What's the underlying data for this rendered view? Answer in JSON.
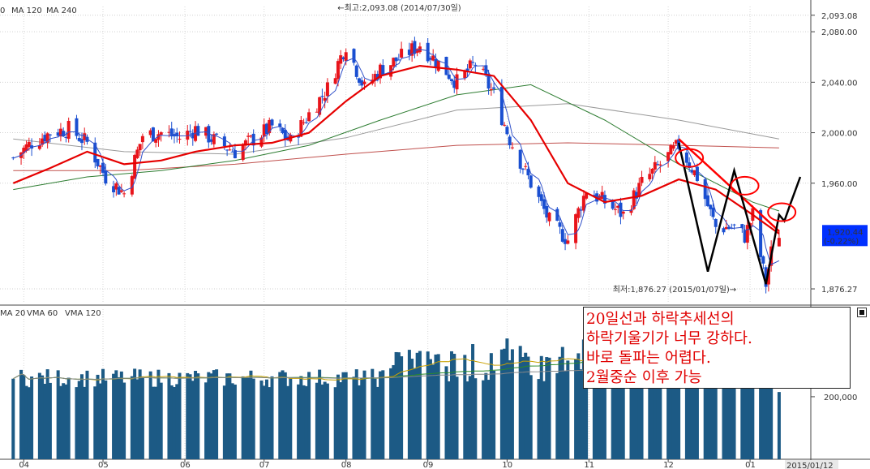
{
  "chart_data": [
    {
      "type": "candlestick",
      "title": "",
      "legend": [
        "MA 120",
        "MA 240"
      ],
      "legend_prefix": "0",
      "y_ticks": [
        "2,093.08",
        "2,080.00",
        "2,040.00",
        "2,000.00",
        "1,960.00",
        "1,876.27"
      ],
      "ylim": [
        1866,
        2100
      ],
      "grid": true,
      "high_annotation": "←최고:2,093.08 (2014/07/30일)",
      "low_annotation": "최저:1,876.27 (2015/01/07일)→",
      "last_value": "1,920.44",
      "last_change": "(-0.22%)",
      "x_months": [
        "04",
        "05",
        "06",
        "07",
        "08",
        "09",
        "10",
        "11",
        "12",
        "01"
      ],
      "close_points": [
        [
          "2014-03-28",
          1980
        ],
        [
          "2014-04-04",
          1992
        ],
        [
          "2014-04-11",
          2000
        ],
        [
          "2014-04-18",
          2003
        ],
        [
          "2014-04-25",
          1992
        ],
        [
          "2014-05-02",
          1965
        ],
        [
          "2014-05-09",
          1952
        ],
        [
          "2014-05-16",
          1998
        ],
        [
          "2014-05-23",
          2000
        ],
        [
          "2014-05-30",
          1996
        ],
        [
          "2014-06-05",
          2003
        ],
        [
          "2014-06-13",
          1993
        ],
        [
          "2014-06-20",
          1985
        ],
        [
          "2014-06-27",
          1995
        ],
        [
          "2014-07-04",
          2005
        ],
        [
          "2014-07-11",
          1993
        ],
        [
          "2014-07-18",
          2015
        ],
        [
          "2014-07-25",
          2035
        ],
        [
          "2014-08-01",
          2070
        ],
        [
          "2014-08-08",
          2035
        ],
        [
          "2014-08-14",
          2050
        ],
        [
          "2014-08-22",
          2060
        ],
        [
          "2014-08-29",
          2070
        ],
        [
          "2014-09-05",
          2055
        ],
        [
          "2014-09-12",
          2040
        ],
        [
          "2014-09-19",
          2055
        ],
        [
          "2014-09-26",
          2030
        ],
        [
          "2014-10-02",
          1995
        ],
        [
          "2014-10-10",
          1960
        ],
        [
          "2014-10-17",
          1930
        ],
        [
          "2014-10-24",
          1915
        ],
        [
          "2014-10-31",
          1955
        ],
        [
          "2014-11-07",
          1945
        ],
        [
          "2014-11-14",
          1935
        ],
        [
          "2014-11-21",
          1960
        ],
        [
          "2014-11-28",
          1975
        ],
        [
          "2014-12-05",
          1990
        ],
        [
          "2014-12-12",
          1965
        ],
        [
          "2014-12-19",
          1925
        ],
        [
          "2014-12-26",
          1925
        ],
        [
          "2014-12-30",
          1918
        ],
        [
          "2015-01-02",
          1935
        ],
        [
          "2015-01-07",
          1880
        ],
        [
          "2015-01-09",
          1905
        ],
        [
          "2015-01-12",
          1920.44
        ]
      ],
      "ma20_points": [
        [
          "2014-03-28",
          1960
        ],
        [
          "2014-04-11",
          1972
        ],
        [
          "2014-04-25",
          1985
        ],
        [
          "2014-05-09",
          1975
        ],
        [
          "2014-05-23",
          1978
        ],
        [
          "2014-06-05",
          1985
        ],
        [
          "2014-06-20",
          1990
        ],
        [
          "2014-07-04",
          1992
        ],
        [
          "2014-07-18",
          2000
        ],
        [
          "2014-08-01",
          2025
        ],
        [
          "2014-08-14",
          2045
        ],
        [
          "2014-08-29",
          2053
        ],
        [
          "2014-09-12",
          2050
        ],
        [
          "2014-09-26",
          2045
        ],
        [
          "2014-10-10",
          2010
        ],
        [
          "2014-10-24",
          1960
        ],
        [
          "2014-11-07",
          1945
        ],
        [
          "2014-11-21",
          1950
        ],
        [
          "2014-12-05",
          1963
        ],
        [
          "2014-12-19",
          1955
        ],
        [
          "2015-01-02",
          1935
        ],
        [
          "2015-01-12",
          1920
        ]
      ],
      "ma60_points": [
        [
          "2014-03-28",
          1955
        ],
        [
          "2014-04-25",
          1965
        ],
        [
          "2014-05-23",
          1970
        ],
        [
          "2014-06-20",
          1978
        ],
        [
          "2014-07-18",
          1990
        ],
        [
          "2014-08-14",
          2010
        ],
        [
          "2014-09-12",
          2030
        ],
        [
          "2014-10-10",
          2038
        ],
        [
          "2014-11-07",
          2010
        ],
        [
          "2014-12-05",
          1975
        ],
        [
          "2015-01-02",
          1945
        ],
        [
          "2015-01-12",
          1938
        ]
      ],
      "ma120_points": [
        [
          "2014-03-28",
          1995
        ],
        [
          "2014-05-09",
          1985
        ],
        [
          "2014-06-20",
          1983
        ],
        [
          "2014-08-01",
          1996
        ],
        [
          "2014-09-12",
          2018
        ],
        [
          "2014-10-24",
          2023
        ],
        [
          "2014-12-05",
          2010
        ],
        [
          "2015-01-12",
          1995
        ]
      ],
      "ma240_points": [
        [
          "2014-03-28",
          1970
        ],
        [
          "2014-05-09",
          1970
        ],
        [
          "2014-06-20",
          1975
        ],
        [
          "2014-08-01",
          1983
        ],
        [
          "2014-09-12",
          1990
        ],
        [
          "2014-10-24",
          1992
        ],
        [
          "2014-12-05",
          1990
        ],
        [
          "2015-01-12",
          1988
        ]
      ],
      "drawn_trendline": [
        [
          "2014-12-05",
          1995
        ],
        [
          "2015-01-12",
          1922
        ]
      ],
      "drawn_path": [
        [
          "2014-12-05",
          1992
        ],
        [
          "2014-12-16",
          1890
        ],
        [
          "2014-12-26",
          1970
        ],
        [
          "2015-01-07",
          1880
        ],
        [
          "2015-01-12",
          1935
        ],
        [
          "2015-01-14",
          1930
        ],
        [
          "2015-01-16",
          1942
        ],
        [
          "2015-01-20",
          1965
        ]
      ],
      "highlight_circles": [
        [
          "2014-12-09",
          1980
        ],
        [
          "2014-12-30",
          1958
        ],
        [
          "2015-01-13",
          1937
        ]
      ]
    },
    {
      "type": "bar",
      "title": "",
      "legend": [
        "MA 20",
        "VMA 60",
        "VMA 120"
      ],
      "legend_prefix_colors": [
        "#c8a000",
        "#2a8a2a",
        "#888888"
      ],
      "y_ticks": [
        "200,000"
      ],
      "volume_level_note": "volume bars fluctuate roughly between 200,000 and 400,000",
      "x_last_label": "2015/01/12"
    }
  ],
  "annotation": {
    "lines": [
      "20일선과 하락추세선의",
      "하락기울기가 너무 강하다.",
      "바로 돌파는 어렵다.",
      "2월중순 이후 가능"
    ]
  },
  "colors": {
    "up": "#e8141b",
    "down": "#1a4fd1",
    "ma20": "#e60000",
    "ma5": "#3050c8",
    "ma60": "#2e7d32",
    "ma120": "#999999",
    "ma240": "#c0504d",
    "volume": "#1c5a85",
    "annotation_text": "#e00000",
    "last_box": "#0030ff"
  }
}
